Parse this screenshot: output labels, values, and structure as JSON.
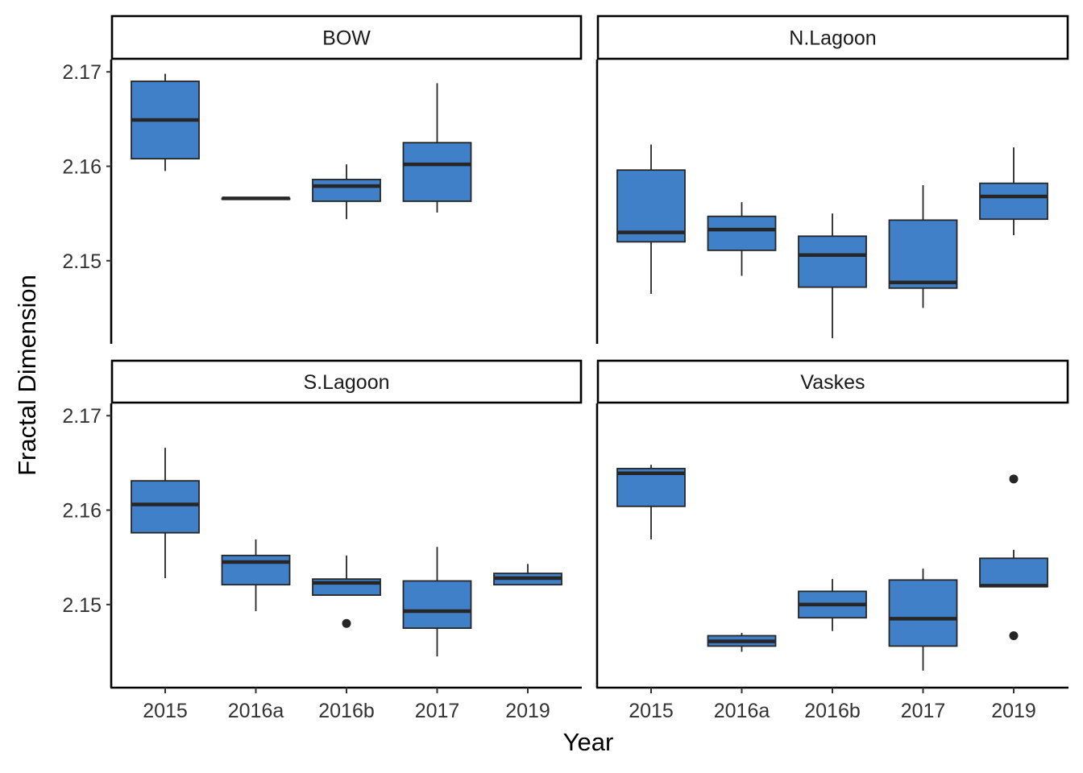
{
  "chart_data": {
    "type": "boxplot",
    "xlabel": "Year",
    "ylabel": "Fractal Dimension",
    "ylim": [
      2.1412,
      2.1713
    ],
    "yticks": [
      2.15,
      2.16,
      2.17
    ],
    "ytick_labels": [
      "2.15",
      "2.16",
      "2.17"
    ],
    "categories": [
      "2015",
      "2016a",
      "2016b",
      "2017",
      "2019"
    ],
    "box_color": "#4080C8",
    "line_color": "#262626",
    "grid": false,
    "facets": [
      {
        "name": "BOW",
        "boxes": [
          {
            "x": "2015",
            "min": 2.1595,
            "q1": 2.1608,
            "median": 2.1649,
            "q3": 2.169,
            "max": 2.1698,
            "outliers": []
          },
          {
            "x": "2016a",
            "min": 2.1566,
            "q1": 2.1566,
            "median": 2.1566,
            "q3": 2.1566,
            "max": 2.1566,
            "outliers": []
          },
          {
            "x": "2016b",
            "min": 2.1544,
            "q1": 2.1563,
            "median": 2.1579,
            "q3": 2.1586,
            "max": 2.1602,
            "outliers": []
          },
          {
            "x": "2017",
            "min": 2.1551,
            "q1": 2.1563,
            "median": 2.1602,
            "q3": 2.1625,
            "max": 2.1688,
            "outliers": []
          }
        ]
      },
      {
        "name": "N.Lagoon",
        "boxes": [
          {
            "x": "2015",
            "min": 2.1465,
            "q1": 2.152,
            "median": 2.153,
            "q3": 2.1596,
            "max": 2.1623,
            "outliers": []
          },
          {
            "x": "2016a",
            "min": 2.1484,
            "q1": 2.1511,
            "median": 2.1533,
            "q3": 2.1547,
            "max": 2.1562,
            "outliers": []
          },
          {
            "x": "2016b",
            "min": 2.1418,
            "q1": 2.1472,
            "median": 2.1506,
            "q3": 2.1526,
            "max": 2.155,
            "outliers": []
          },
          {
            "x": "2017",
            "min": 2.145,
            "q1": 2.1471,
            "median": 2.1477,
            "q3": 2.1543,
            "max": 2.158,
            "outliers": []
          },
          {
            "x": "2019",
            "min": 2.1527,
            "q1": 2.1544,
            "median": 2.1568,
            "q3": 2.1582,
            "max": 2.162,
            "outliers": []
          }
        ]
      },
      {
        "name": "S.Lagoon",
        "boxes": [
          {
            "x": "2015",
            "min": 2.1528,
            "q1": 2.1576,
            "median": 2.1606,
            "q3": 2.1631,
            "max": 2.1666,
            "outliers": []
          },
          {
            "x": "2016a",
            "min": 2.1493,
            "q1": 2.1521,
            "median": 2.1545,
            "q3": 2.1552,
            "max": 2.1569,
            "outliers": []
          },
          {
            "x": "2016b",
            "min": 2.151,
            "q1": 2.151,
            "median": 2.1523,
            "q3": 2.1527,
            "max": 2.1552,
            "outliers": [
              2.148
            ]
          },
          {
            "x": "2017",
            "min": 2.1445,
            "q1": 2.1475,
            "median": 2.1493,
            "q3": 2.1525,
            "max": 2.1561,
            "outliers": []
          },
          {
            "x": "2019",
            "min": 2.1521,
            "q1": 2.1521,
            "median": 2.1528,
            "q3": 2.1533,
            "max": 2.1543,
            "outliers": []
          }
        ]
      },
      {
        "name": "Vaskes",
        "boxes": [
          {
            "x": "2015",
            "min": 2.1569,
            "q1": 2.1604,
            "median": 2.1639,
            "q3": 2.1644,
            "max": 2.1648,
            "outliers": []
          },
          {
            "x": "2016a",
            "min": 2.145,
            "q1": 2.1456,
            "median": 2.1461,
            "q3": 2.1467,
            "max": 2.147,
            "outliers": []
          },
          {
            "x": "2016b",
            "min": 2.1472,
            "q1": 2.1486,
            "median": 2.15,
            "q3": 2.1514,
            "max": 2.1527,
            "outliers": []
          },
          {
            "x": "2017",
            "min": 2.143,
            "q1": 2.1456,
            "median": 2.1485,
            "q3": 2.1526,
            "max": 2.1538,
            "outliers": []
          },
          {
            "x": "2019",
            "min": 2.1519,
            "q1": 2.1519,
            "median": 2.152,
            "q3": 2.1549,
            "max": 2.1558,
            "outliers": [
              2.1633,
              2.1467
            ]
          }
        ]
      }
    ]
  }
}
